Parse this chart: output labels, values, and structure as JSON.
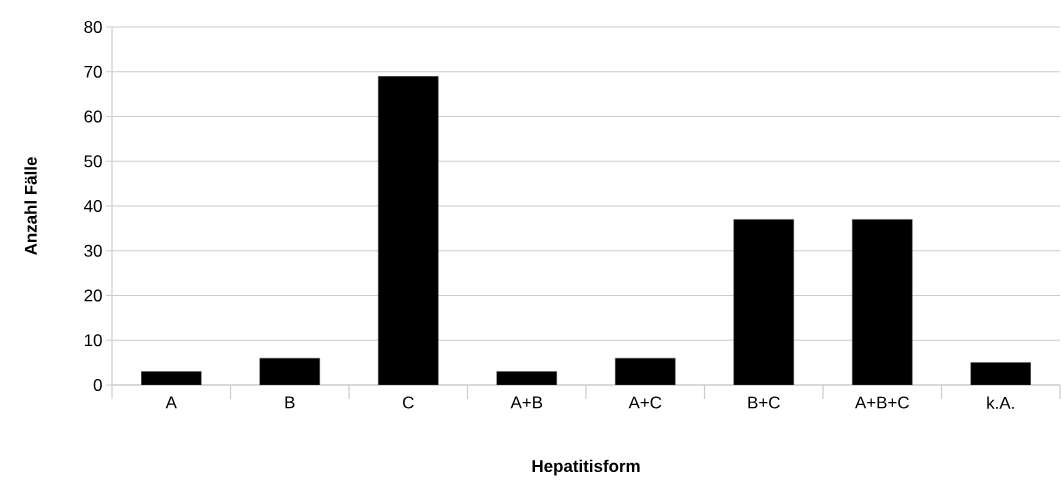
{
  "chart_data": {
    "type": "bar",
    "xlabel": "Hepatitisform",
    "ylabel": "Anzahl  Fälle",
    "categories": [
      "A",
      "B",
      "C",
      "A+B",
      "A+C",
      "B+C",
      "A+B+C",
      "k.A."
    ],
    "values": [
      3,
      6,
      69,
      3,
      6,
      37,
      37,
      5
    ],
    "color": "#000000",
    "ylim": [
      0,
      80
    ],
    "yticks": [
      0,
      10,
      20,
      30,
      40,
      50,
      60,
      70,
      80
    ],
    "grid": "y"
  }
}
